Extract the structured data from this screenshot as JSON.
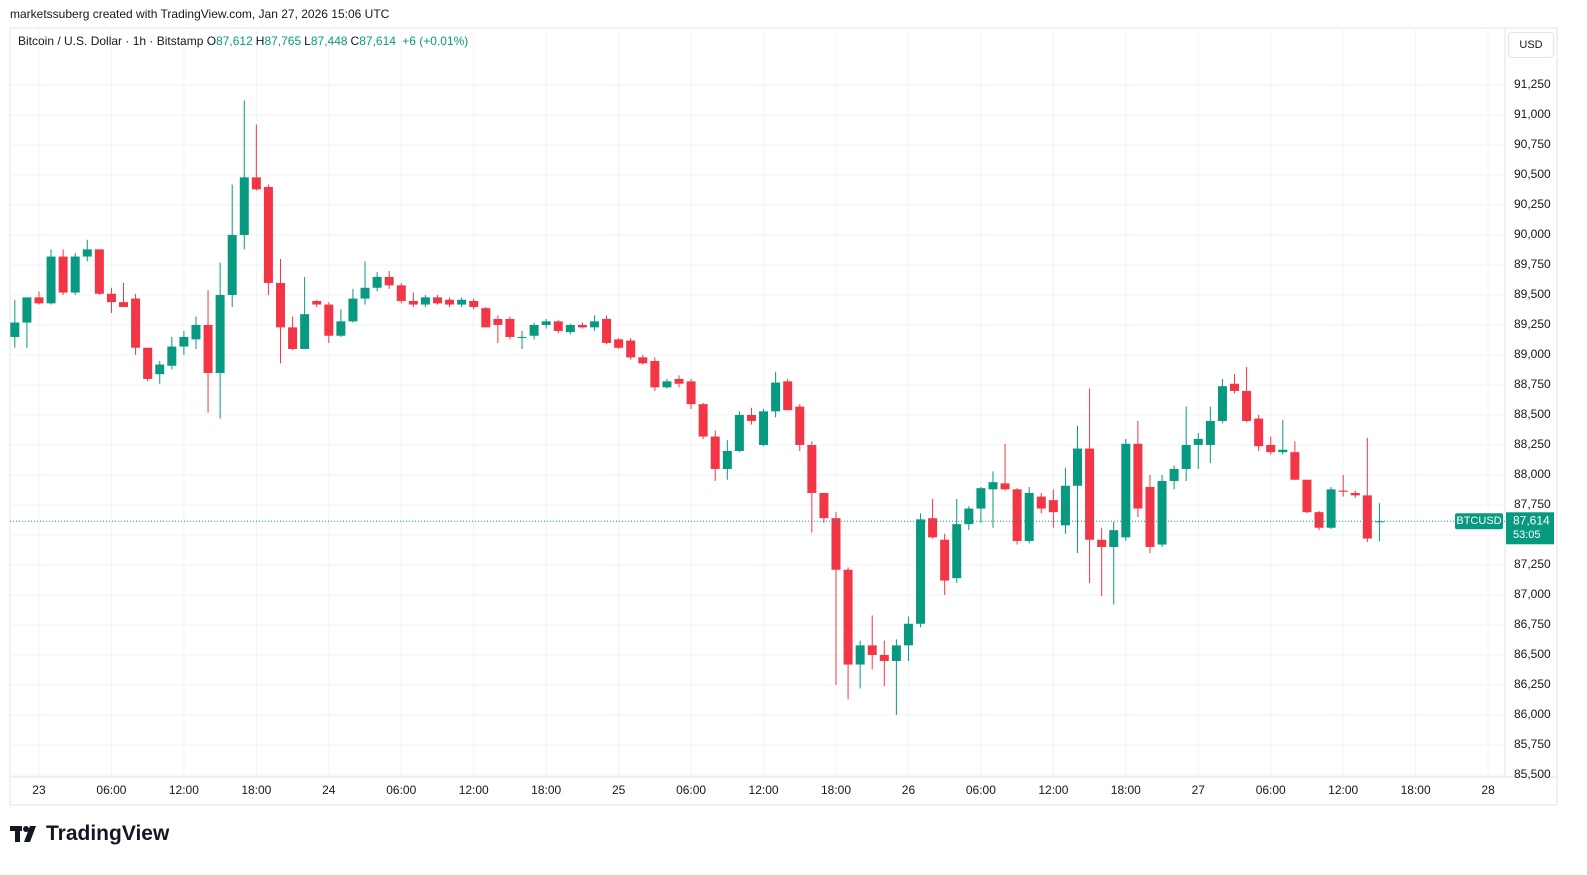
{
  "header": {
    "attribution": "marketssuberg created with TradingView.com, Jan 27, 2026 15:06 UTC"
  },
  "chart_data": {
    "type": "candlestick",
    "title": "Bitcoin / U.S. Dollar · 1h · Bitstamp",
    "ohlc_legend": [
      {
        "label": "O",
        "value": "87,612"
      },
      {
        "label": "H",
        "value": "87,765"
      },
      {
        "label": "L",
        "value": "87,448"
      },
      {
        "label": "C",
        "value": "87,614"
      }
    ],
    "change": "+6 (+0.01%)",
    "currency": "USD",
    "up_color": "#089981",
    "down_color": "#f23645",
    "grid": true,
    "x": [
      "22 22:00",
      "22 23:00",
      "23 00:00",
      "23 01:00",
      "23 02:00",
      "23 03:00",
      "23 04:00",
      "23 05:00",
      "23 06:00",
      "23 07:00",
      "23 08:00",
      "23 09:00",
      "23 10:00",
      "23 11:00",
      "23 12:00",
      "23 13:00",
      "23 14:00",
      "23 15:00",
      "23 16:00",
      "23 17:00",
      "23 18:00",
      "23 19:00",
      "23 20:00",
      "23 21:00",
      "23 22:00",
      "23 23:00",
      "24 00:00",
      "24 01:00",
      "24 02:00",
      "24 03:00",
      "24 04:00",
      "24 05:00",
      "24 06:00",
      "24 07:00",
      "24 08:00",
      "24 09:00",
      "24 10:00",
      "24 11:00",
      "24 12:00",
      "24 13:00",
      "24 14:00",
      "24 15:00",
      "24 16:00",
      "24 17:00",
      "24 18:00",
      "24 19:00",
      "24 20:00",
      "24 21:00",
      "24 22:00",
      "24 23:00",
      "25 00:00",
      "25 01:00",
      "25 02:00",
      "25 03:00",
      "25 04:00",
      "25 05:00",
      "25 06:00",
      "25 07:00",
      "25 08:00",
      "25 09:00",
      "25 10:00",
      "25 11:00",
      "25 12:00",
      "25 13:00",
      "25 14:00",
      "25 15:00",
      "25 16:00",
      "25 17:00",
      "25 18:00",
      "25 19:00",
      "25 20:00",
      "25 21:00",
      "25 22:00",
      "25 23:00",
      "26 00:00",
      "26 01:00",
      "26 02:00",
      "26 03:00",
      "26 04:00",
      "26 05:00",
      "26 06:00",
      "26 07:00",
      "26 08:00",
      "26 09:00",
      "26 10:00",
      "26 11:00",
      "26 12:00",
      "26 13:00",
      "26 14:00",
      "26 15:00",
      "26 16:00",
      "26 17:00",
      "26 18:00",
      "26 19:00",
      "26 20:00",
      "26 21:00",
      "26 22:00",
      "26 23:00",
      "27 00:00",
      "27 01:00",
      "27 02:00",
      "27 03:00",
      "27 04:00",
      "27 05:00",
      "27 06:00",
      "27 07:00",
      "27 08:00",
      "27 09:00",
      "27 10:00",
      "27 11:00",
      "27 12:00",
      "27 13:00",
      "27 14:00",
      "27 15:00"
    ],
    "open": [
      89150,
      89270,
      89480,
      89430,
      89820,
      89520,
      89820,
      89880,
      89510,
      89440,
      89470,
      89060,
      88840,
      88910,
      89070,
      89130,
      89250,
      88850,
      89500,
      90000,
      90480,
      90400,
      89600,
      89230,
      89050,
      89450,
      89420,
      89160,
      89280,
      89470,
      89560,
      89650,
      89580,
      89450,
      89420,
      89480,
      89460,
      89420,
      89450,
      89390,
      89300,
      89300,
      89150,
      89160,
      89250,
      89280,
      89190,
      89250,
      89230,
      89300,
      89130,
      89120,
      88980,
      88950,
      88730,
      88800,
      88780,
      88590,
      88320,
      88050,
      88200,
      88500,
      88250,
      88530,
      88780,
      88570,
      88250,
      87850,
      87640,
      87210,
      86420,
      86580,
      86500,
      86450,
      86580,
      86760,
      87640,
      87460,
      87140,
      87590,
      87720,
      87880,
      87930,
      87880,
      87450,
      87820,
      87790,
      87580,
      87910,
      88220,
      87460,
      87400,
      87480,
      88260,
      87900,
      87420,
      87950,
      88050,
      88250,
      88250,
      88450,
      88760,
      88700,
      88470,
      88250,
      88190,
      88190,
      87960,
      87690,
      87560,
      87870,
      87850,
      87830,
      87612
    ],
    "high": [
      89460,
      89480,
      89530,
      89880,
      89880,
      89850,
      89960,
      89880,
      89560,
      89600,
      89510,
      89060,
      88950,
      89150,
      89200,
      89320,
      89540,
      89770,
      90420,
      91120,
      90920,
      90420,
      89800,
      89320,
      89650,
      89460,
      89440,
      89380,
      89550,
      89780,
      89690,
      89700,
      89600,
      89520,
      89500,
      89500,
      89480,
      89480,
      89470,
      89400,
      89330,
      89320,
      89200,
      89270,
      89300,
      89290,
      89260,
      89270,
      89330,
      89330,
      89140,
      89140,
      89000,
      88980,
      88800,
      88830,
      88800,
      88600,
      88370,
      88290,
      88530,
      88560,
      88550,
      88860,
      88800,
      88590,
      88280,
      87850,
      87690,
      87230,
      86620,
      86830,
      86620,
      86630,
      86820,
      87680,
      87800,
      87510,
      87800,
      87740,
      87900,
      88030,
      88260,
      87890,
      87900,
      87850,
      87880,
      88060,
      88410,
      88720,
      87560,
      87610,
      88300,
      88450,
      88000,
      88000,
      88080,
      88570,
      88350,
      88570,
      88800,
      88840,
      88900,
      88500,
      88320,
      88460,
      88280,
      87960,
      87700,
      87900,
      88000,
      87870,
      88310,
      87765
    ],
    "low": [
      89060,
      89060,
      89420,
      89420,
      89500,
      89500,
      89780,
      89500,
      89350,
      89400,
      89000,
      88780,
      88760,
      88880,
      89000,
      89050,
      88520,
      88470,
      89400,
      89880,
      90370,
      89500,
      88930,
      89040,
      89050,
      89400,
      89100,
      89150,
      89270,
      89420,
      89530,
      89550,
      89430,
      89400,
      89400,
      89420,
      89400,
      89400,
      89380,
      89230,
      89100,
      89130,
      89050,
      89130,
      89220,
      89180,
      89170,
      89220,
      89200,
      89090,
      89050,
      88960,
      88920,
      88700,
      88720,
      88730,
      88550,
      88300,
      87950,
      87960,
      88190,
      88420,
      88240,
      88480,
      88540,
      88200,
      87520,
      87600,
      86250,
      86130,
      86220,
      86380,
      86240,
      86000,
      86450,
      86730,
      87470,
      87000,
      87100,
      87540,
      87600,
      87560,
      87870,
      87420,
      87430,
      87680,
      87560,
      87510,
      87350,
      87100,
      86990,
      86920,
      87450,
      87650,
      87350,
      87400,
      87880,
      87950,
      88050,
      88100,
      88430,
      88680,
      88440,
      88200,
      88170,
      88170,
      87960,
      87680,
      87540,
      87550,
      87820,
      87810,
      87440,
      87448
    ],
    "close": [
      89270,
      89480,
      89430,
      89820,
      89520,
      89820,
      89880,
      89510,
      89440,
      89400,
      89060,
      88800,
      88920,
      89070,
      89150,
      89250,
      88850,
      89500,
      90000,
      90480,
      90380,
      89600,
      89230,
      89050,
      89340,
      89420,
      89160,
      89280,
      89470,
      89560,
      89650,
      89580,
      89450,
      89420,
      89480,
      89430,
      89420,
      89460,
      89400,
      89230,
      89250,
      89150,
      89150,
      89250,
      89280,
      89200,
      89250,
      89230,
      89280,
      89100,
      89060,
      88980,
      88930,
      88730,
      88780,
      88760,
      88590,
      88320,
      88050,
      88200,
      88500,
      88450,
      88530,
      88770,
      88540,
      88250,
      87850,
      87640,
      87210,
      86420,
      86580,
      86500,
      86450,
      86580,
      86760,
      87630,
      87480,
      87120,
      87590,
      87720,
      87890,
      87940,
      87880,
      87450,
      87850,
      87720,
      87690,
      87910,
      88220,
      87460,
      87400,
      87540,
      88260,
      87720,
      87400,
      87950,
      88050,
      88250,
      88300,
      88450,
      88740,
      88700,
      88450,
      88240,
      88190,
      88210,
      87960,
      87690,
      87560,
      87880,
      87860,
      87830,
      87470,
      87614
    ],
    "xlim": [
      "22 21:36",
      "28 01:24"
    ],
    "xticks": [
      {
        "value": "23 00:00",
        "label": "23"
      },
      {
        "value": "23 06:00",
        "label": "06:00"
      },
      {
        "value": "23 12:00",
        "label": "12:00"
      },
      {
        "value": "23 18:00",
        "label": "18:00"
      },
      {
        "value": "24 00:00",
        "label": "24"
      },
      {
        "value": "24 06:00",
        "label": "06:00"
      },
      {
        "value": "24 12:00",
        "label": "12:00"
      },
      {
        "value": "24 18:00",
        "label": "18:00"
      },
      {
        "value": "25 00:00",
        "label": "25"
      },
      {
        "value": "25 06:00",
        "label": "06:00"
      },
      {
        "value": "25 12:00",
        "label": "12:00"
      },
      {
        "value": "25 18:00",
        "label": "18:00"
      },
      {
        "value": "26 00:00",
        "label": "26"
      },
      {
        "value": "26 06:00",
        "label": "06:00"
      },
      {
        "value": "26 12:00",
        "label": "12:00"
      },
      {
        "value": "26 18:00",
        "label": "18:00"
      },
      {
        "value": "27 00:00",
        "label": "27"
      },
      {
        "value": "27 06:00",
        "label": "06:00"
      },
      {
        "value": "27 12:00",
        "label": "12:00"
      },
      {
        "value": "27 18:00",
        "label": "18:00"
      },
      {
        "value": "28 00:00",
        "label": "28"
      }
    ],
    "ylim": [
      85483,
      91483
    ],
    "yticks": [
      {
        "value": 85500,
        "label": "85,500"
      },
      {
        "value": 85750,
        "label": "85,750"
      },
      {
        "value": 86000,
        "label": "86,000"
      },
      {
        "value": 86250,
        "label": "86,250"
      },
      {
        "value": 86500,
        "label": "86,500"
      },
      {
        "value": 86750,
        "label": "86,750"
      },
      {
        "value": 87000,
        "label": "87,000"
      },
      {
        "value": 87250,
        "label": "87,250"
      },
      {
        "value": 87500,
        "label": "87,500"
      },
      {
        "value": 87750,
        "label": "87,750"
      },
      {
        "value": 88000,
        "label": "88,000"
      },
      {
        "value": 88250,
        "label": "88,250"
      },
      {
        "value": 88500,
        "label": "88,500"
      },
      {
        "value": 88750,
        "label": "88,750"
      },
      {
        "value": 89000,
        "label": "89,000"
      },
      {
        "value": 89250,
        "label": "89,250"
      },
      {
        "value": 89500,
        "label": "89,500"
      },
      {
        "value": 89750,
        "label": "89,750"
      },
      {
        "value": 90000,
        "label": "90,000"
      },
      {
        "value": 90250,
        "label": "90,250"
      },
      {
        "value": 90500,
        "label": "90,500"
      },
      {
        "value": 90750,
        "label": "90,750"
      },
      {
        "value": 91000,
        "label": "91,000"
      },
      {
        "value": 91250,
        "label": "91,250"
      }
    ],
    "price_tag": {
      "symbol": "BTCUSD",
      "value": 87614,
      "label": "87,614",
      "countdown": "53:05"
    }
  },
  "footer": {
    "logo": "TradingView"
  }
}
